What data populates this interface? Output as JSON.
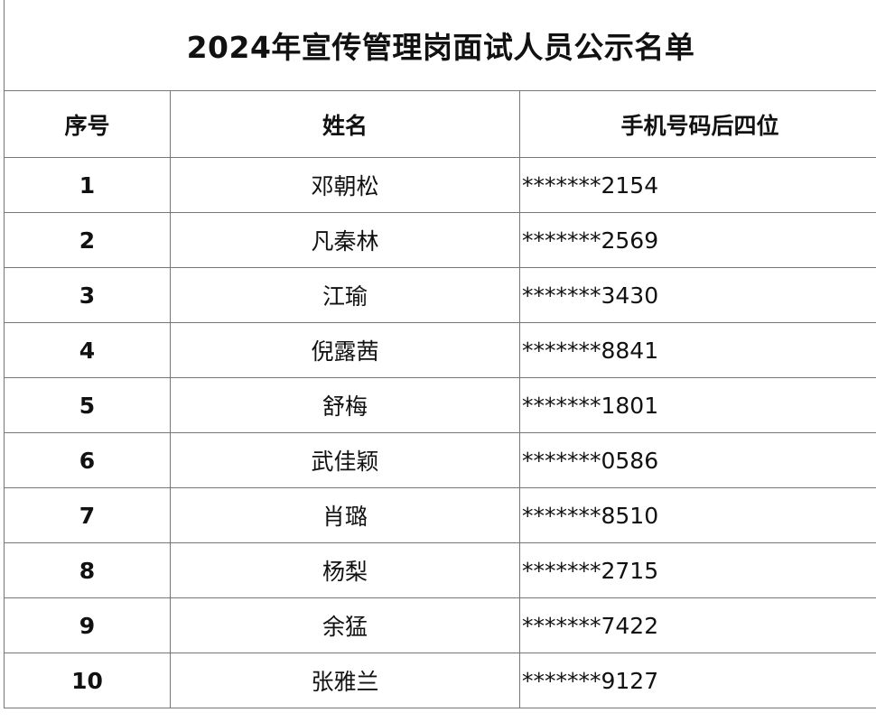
{
  "title": "2024年宣传管理岗面试人员公示名单",
  "columns": [
    "序号",
    "姓名",
    "手机号码后四位"
  ],
  "rows": [
    {
      "no": "1",
      "name": "邓朝松",
      "phone": "*******2154"
    },
    {
      "no": "2",
      "name": "凡秦林",
      "phone": "*******2569"
    },
    {
      "no": "3",
      "name": "江瑜",
      "phone": "*******3430"
    },
    {
      "no": "4",
      "name": "倪露茜",
      "phone": "*******8841"
    },
    {
      "no": "5",
      "name": "舒梅",
      "phone": "*******1801"
    },
    {
      "no": "6",
      "name": "武佳颖",
      "phone": "*******0586"
    },
    {
      "no": "7",
      "name": "肖璐",
      "phone": "*******8510"
    },
    {
      "no": "8",
      "name": "杨梨",
      "phone": "*******2715"
    },
    {
      "no": "9",
      "name": "余猛",
      "phone": "*******7422"
    },
    {
      "no": "10",
      "name": "张雅兰",
      "phone": "*******9127"
    }
  ]
}
